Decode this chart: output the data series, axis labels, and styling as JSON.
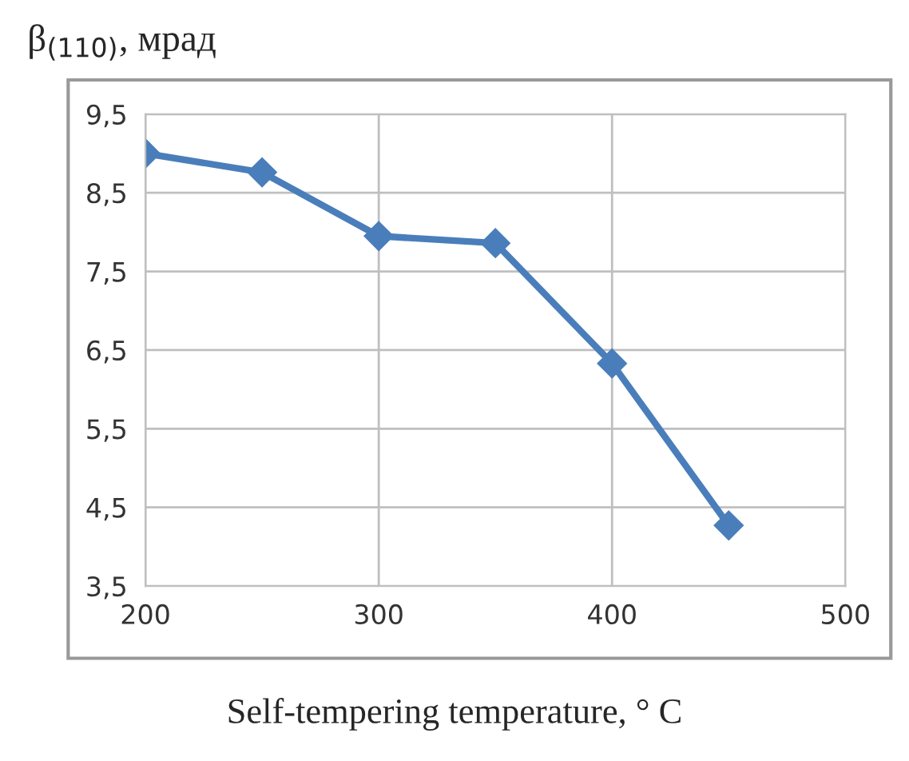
{
  "chart_data": {
    "type": "line",
    "ylabel": "β$_{(110)}$, мрад",
    "xlabel": "Self-tempering temperature, ° C",
    "x": [
      200,
      250,
      300,
      350,
      400,
      450
    ],
    "series": [
      {
        "color": "#4a7ebb",
        "values": [
          9.0,
          8.76,
          7.95,
          7.86,
          6.33,
          4.27
        ]
      }
    ],
    "xlim": [
      200,
      500
    ],
    "xticks": [
      200,
      300,
      400,
      500
    ],
    "ylim": [
      3.5,
      9.5
    ],
    "yticks": [
      {
        "value": 3.5,
        "label": "3,5"
      },
      {
        "value": 4.5,
        "label": "4,5"
      },
      {
        "value": 5.5,
        "label": "5,5"
      },
      {
        "value": 6.5,
        "label": "6,5"
      },
      {
        "value": 7.5,
        "label": "7,5"
      },
      {
        "value": 8.5,
        "label": "8,5"
      },
      {
        "value": 9.5,
        "label": "9,5"
      }
    ],
    "grid": true,
    "marker": "diamond",
    "line_style": "solid"
  }
}
